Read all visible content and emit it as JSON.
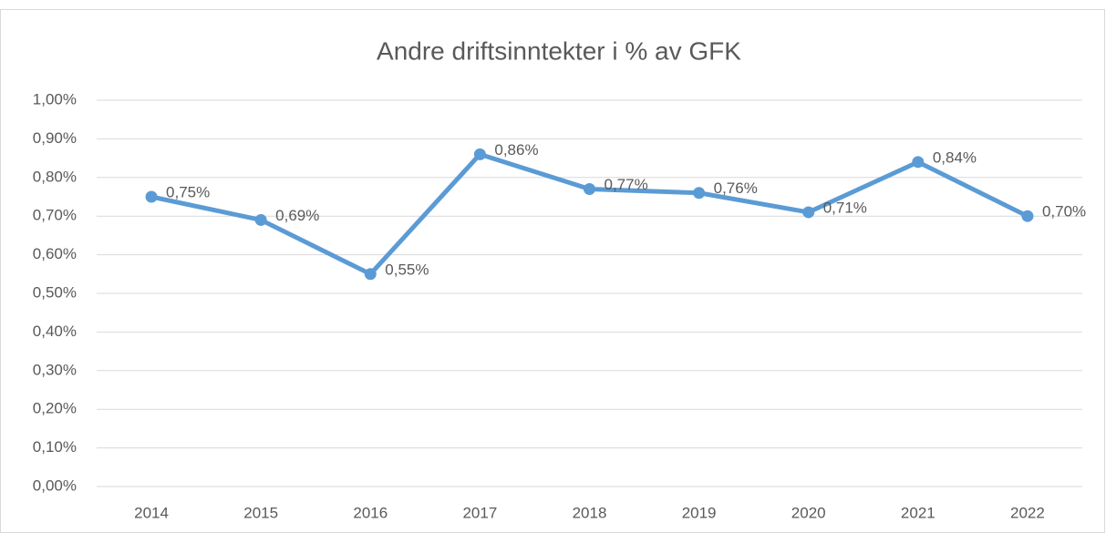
{
  "chart_data": {
    "type": "line",
    "title": "Andre driftsinntekter i % av GFK",
    "categories": [
      "2014",
      "2015",
      "2016",
      "2017",
      "2018",
      "2019",
      "2020",
      "2021",
      "2022"
    ],
    "series": [
      {
        "name": "Andre driftsinntekter i % av GFK",
        "color": "#5b9bd5",
        "values": [
          0.75,
          0.69,
          0.55,
          0.86,
          0.77,
          0.76,
          0.71,
          0.84,
          0.7
        ],
        "value_labels": [
          "0,75%",
          "0,69%",
          "0,55%",
          "0,86%",
          "0,77%",
          "0,76%",
          "0,71%",
          "0,84%",
          "0,70%"
        ]
      }
    ],
    "ylim": [
      0,
      1
    ],
    "yticks": [
      {
        "value": 0,
        "label": "0,00%"
      },
      {
        "value": 0.1,
        "label": "0,10%"
      },
      {
        "value": 0.2,
        "label": "0,20%"
      },
      {
        "value": 0.3,
        "label": "0,30%"
      },
      {
        "value": 0.4,
        "label": "0,40%"
      },
      {
        "value": 0.5,
        "label": "0,50%"
      },
      {
        "value": 0.6,
        "label": "0,60%"
      },
      {
        "value": 0.7,
        "label": "0,70%"
      },
      {
        "value": 0.8,
        "label": "0,80%"
      },
      {
        "value": 0.9,
        "label": "0,90%"
      },
      {
        "value": 1,
        "label": "1,00%"
      }
    ],
    "grid": true
  }
}
